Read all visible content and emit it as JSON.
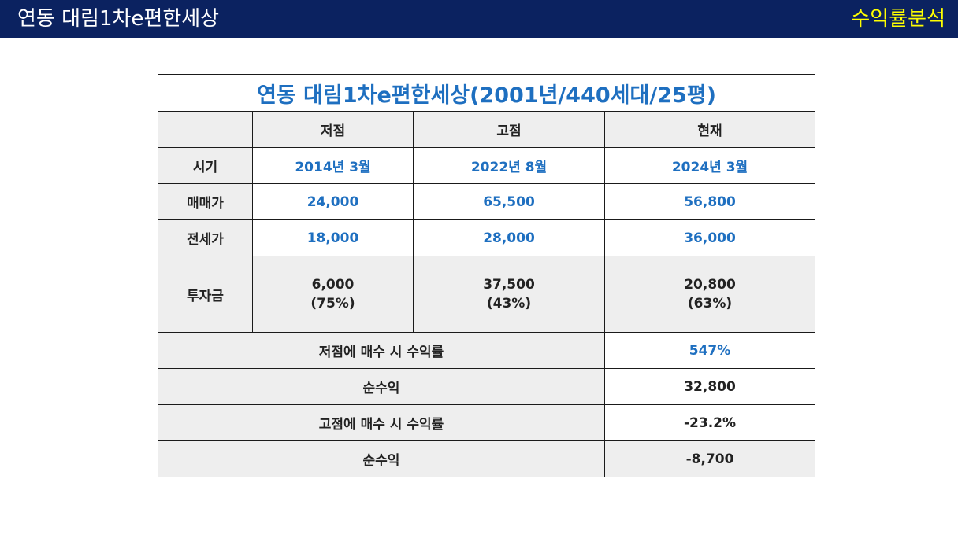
{
  "header": {
    "title": "연동 대림1차e편한세상",
    "section": "수익률분석"
  },
  "table": {
    "caption": "연동 대림1차e편한세상(2001년/440세대/25평)",
    "columns": [
      "저점",
      "고점",
      "현재"
    ],
    "rows": {
      "period": {
        "label": "시기",
        "values": [
          "2014년 3월",
          "2022년 8월",
          "2024년 3월"
        ]
      },
      "sale_price": {
        "label": "매매가",
        "values": [
          "24,000",
          "65,500",
          "56,800"
        ]
      },
      "jeonse_price": {
        "label": "전세가",
        "values": [
          "18,000",
          "28,000",
          "36,000"
        ]
      },
      "investment": {
        "label": "투자금",
        "values": [
          {
            "amount": "6,000",
            "ratio": "(75%)"
          },
          {
            "amount": "37,500",
            "ratio": "(43%)"
          },
          {
            "amount": "20,800",
            "ratio": "(63%)"
          }
        ]
      }
    },
    "summary": {
      "low_return_label": "저점에 매수 시 수익률",
      "low_return_value": "547%",
      "low_net_label": "순수익",
      "low_net_value": "32,800",
      "high_return_label": "고점에 매수 시 수익률",
      "high_return_value": "-23.2%",
      "high_net_label": "순수익",
      "high_net_value": "-8,700"
    }
  },
  "colors": {
    "header_bg": "#0b2260",
    "header_title": "#ffffff",
    "header_section": "#ffff00",
    "accent_blue": "#1e6fc0",
    "cell_gray": "#eeeeee"
  }
}
